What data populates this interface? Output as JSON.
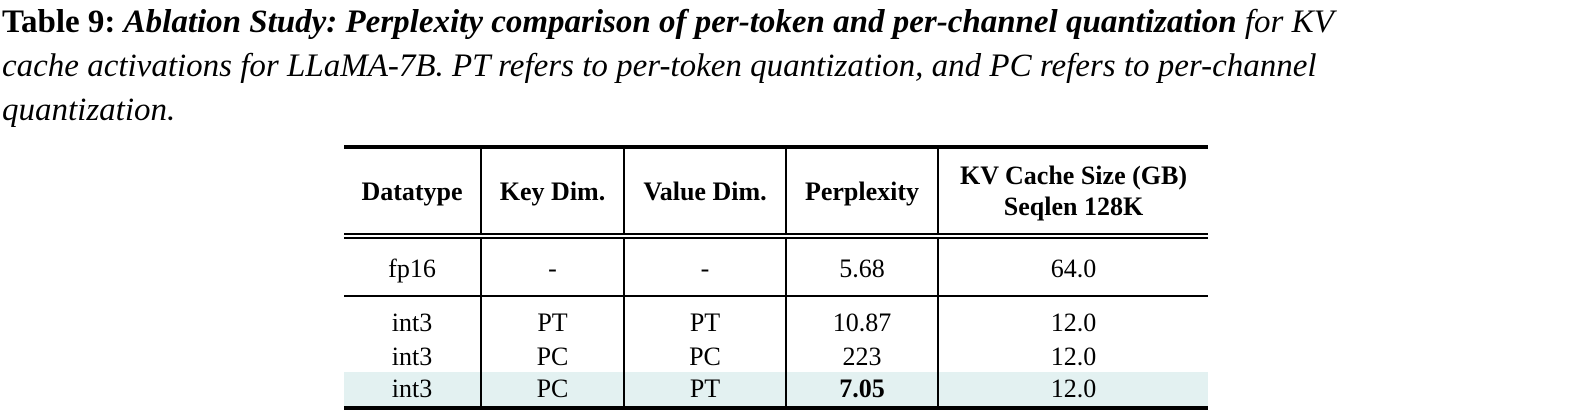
{
  "caption": {
    "label": "Table 9:",
    "bold_italic": "Ablation Study: Perplexity comparison of per-token and per-channel quantization",
    "line1_rest": " for KV",
    "line2": "cache activations for LLaMA-7B. PT refers to per-token quantization, and PC refers to per-channel",
    "line3": "quantization."
  },
  "table": {
    "headers": [
      "Datatype",
      "Key Dim.",
      "Value Dim.",
      "Perplexity",
      "KV Cache Size (GB)",
      "Seqlen 128K"
    ],
    "rows": [
      {
        "datatype": "fp16",
        "key": "-",
        "value": "-",
        "perplexity": "5.68",
        "size": "64.0"
      },
      {
        "datatype": "int3",
        "key": "PT",
        "value": "PT",
        "perplexity": "10.87",
        "size": "12.0"
      },
      {
        "datatype": "int3",
        "key": "PC",
        "value": "PC",
        "perplexity": "223",
        "size": "12.0"
      },
      {
        "datatype": "int3",
        "key": "PC",
        "value": "PT",
        "perplexity": "7.05",
        "size": "12.0"
      }
    ],
    "highlight_color": "#e3f1f1"
  }
}
